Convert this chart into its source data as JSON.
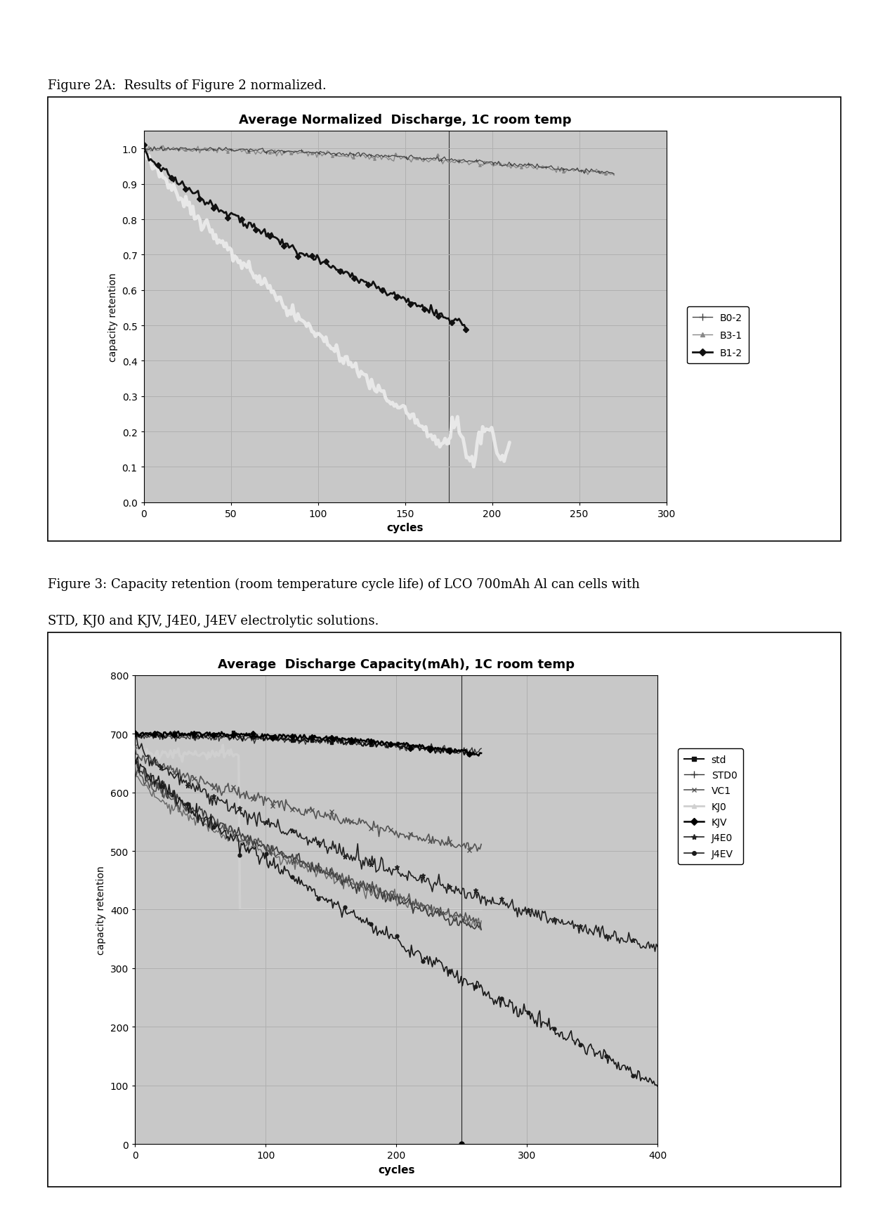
{
  "fig2a_title": "Average Normalized  Discharge, 1C room temp",
  "fig2a_xlabel": "cycles",
  "fig2a_ylabel": "capacity retention",
  "fig2a_xlim": [
    0,
    300
  ],
  "fig2a_ylim": [
    0,
    1.05
  ],
  "fig2a_xticks": [
    0,
    50,
    100,
    150,
    200,
    250,
    300
  ],
  "fig2a_yticks": [
    0,
    0.1,
    0.2,
    0.3,
    0.4,
    0.5,
    0.6,
    0.7,
    0.8,
    0.9,
    1
  ],
  "fig2a_caption": "Figure 2A:  Results of Figure 2 normalized.",
  "fig2a_vline": 175,
  "fig3_title": "Average  Discharge Capacity(mAh), 1C room temp",
  "fig3_xlabel": "cycles",
  "fig3_ylabel": "capacity retention",
  "fig3_xlim": [
    0,
    400
  ],
  "fig3_ylim": [
    0,
    800
  ],
  "fig3_xticks": [
    0,
    100,
    200,
    300,
    400
  ],
  "fig3_yticks": [
    0,
    100,
    200,
    300,
    400,
    500,
    600,
    700,
    800
  ],
  "fig3_caption_line1": "Figure 3: Capacity retention (room temperature cycle life) of LCO 700mAh Al can cells with",
  "fig3_caption_line2": "STD, KJ0 and KJV, J4E0, J4EV electrolytic solutions.",
  "fig3_vline": 250,
  "plot_bg_color": "#c8c8c8",
  "grid_color": "#b0b0b0",
  "outer_bg": "#ffffff"
}
